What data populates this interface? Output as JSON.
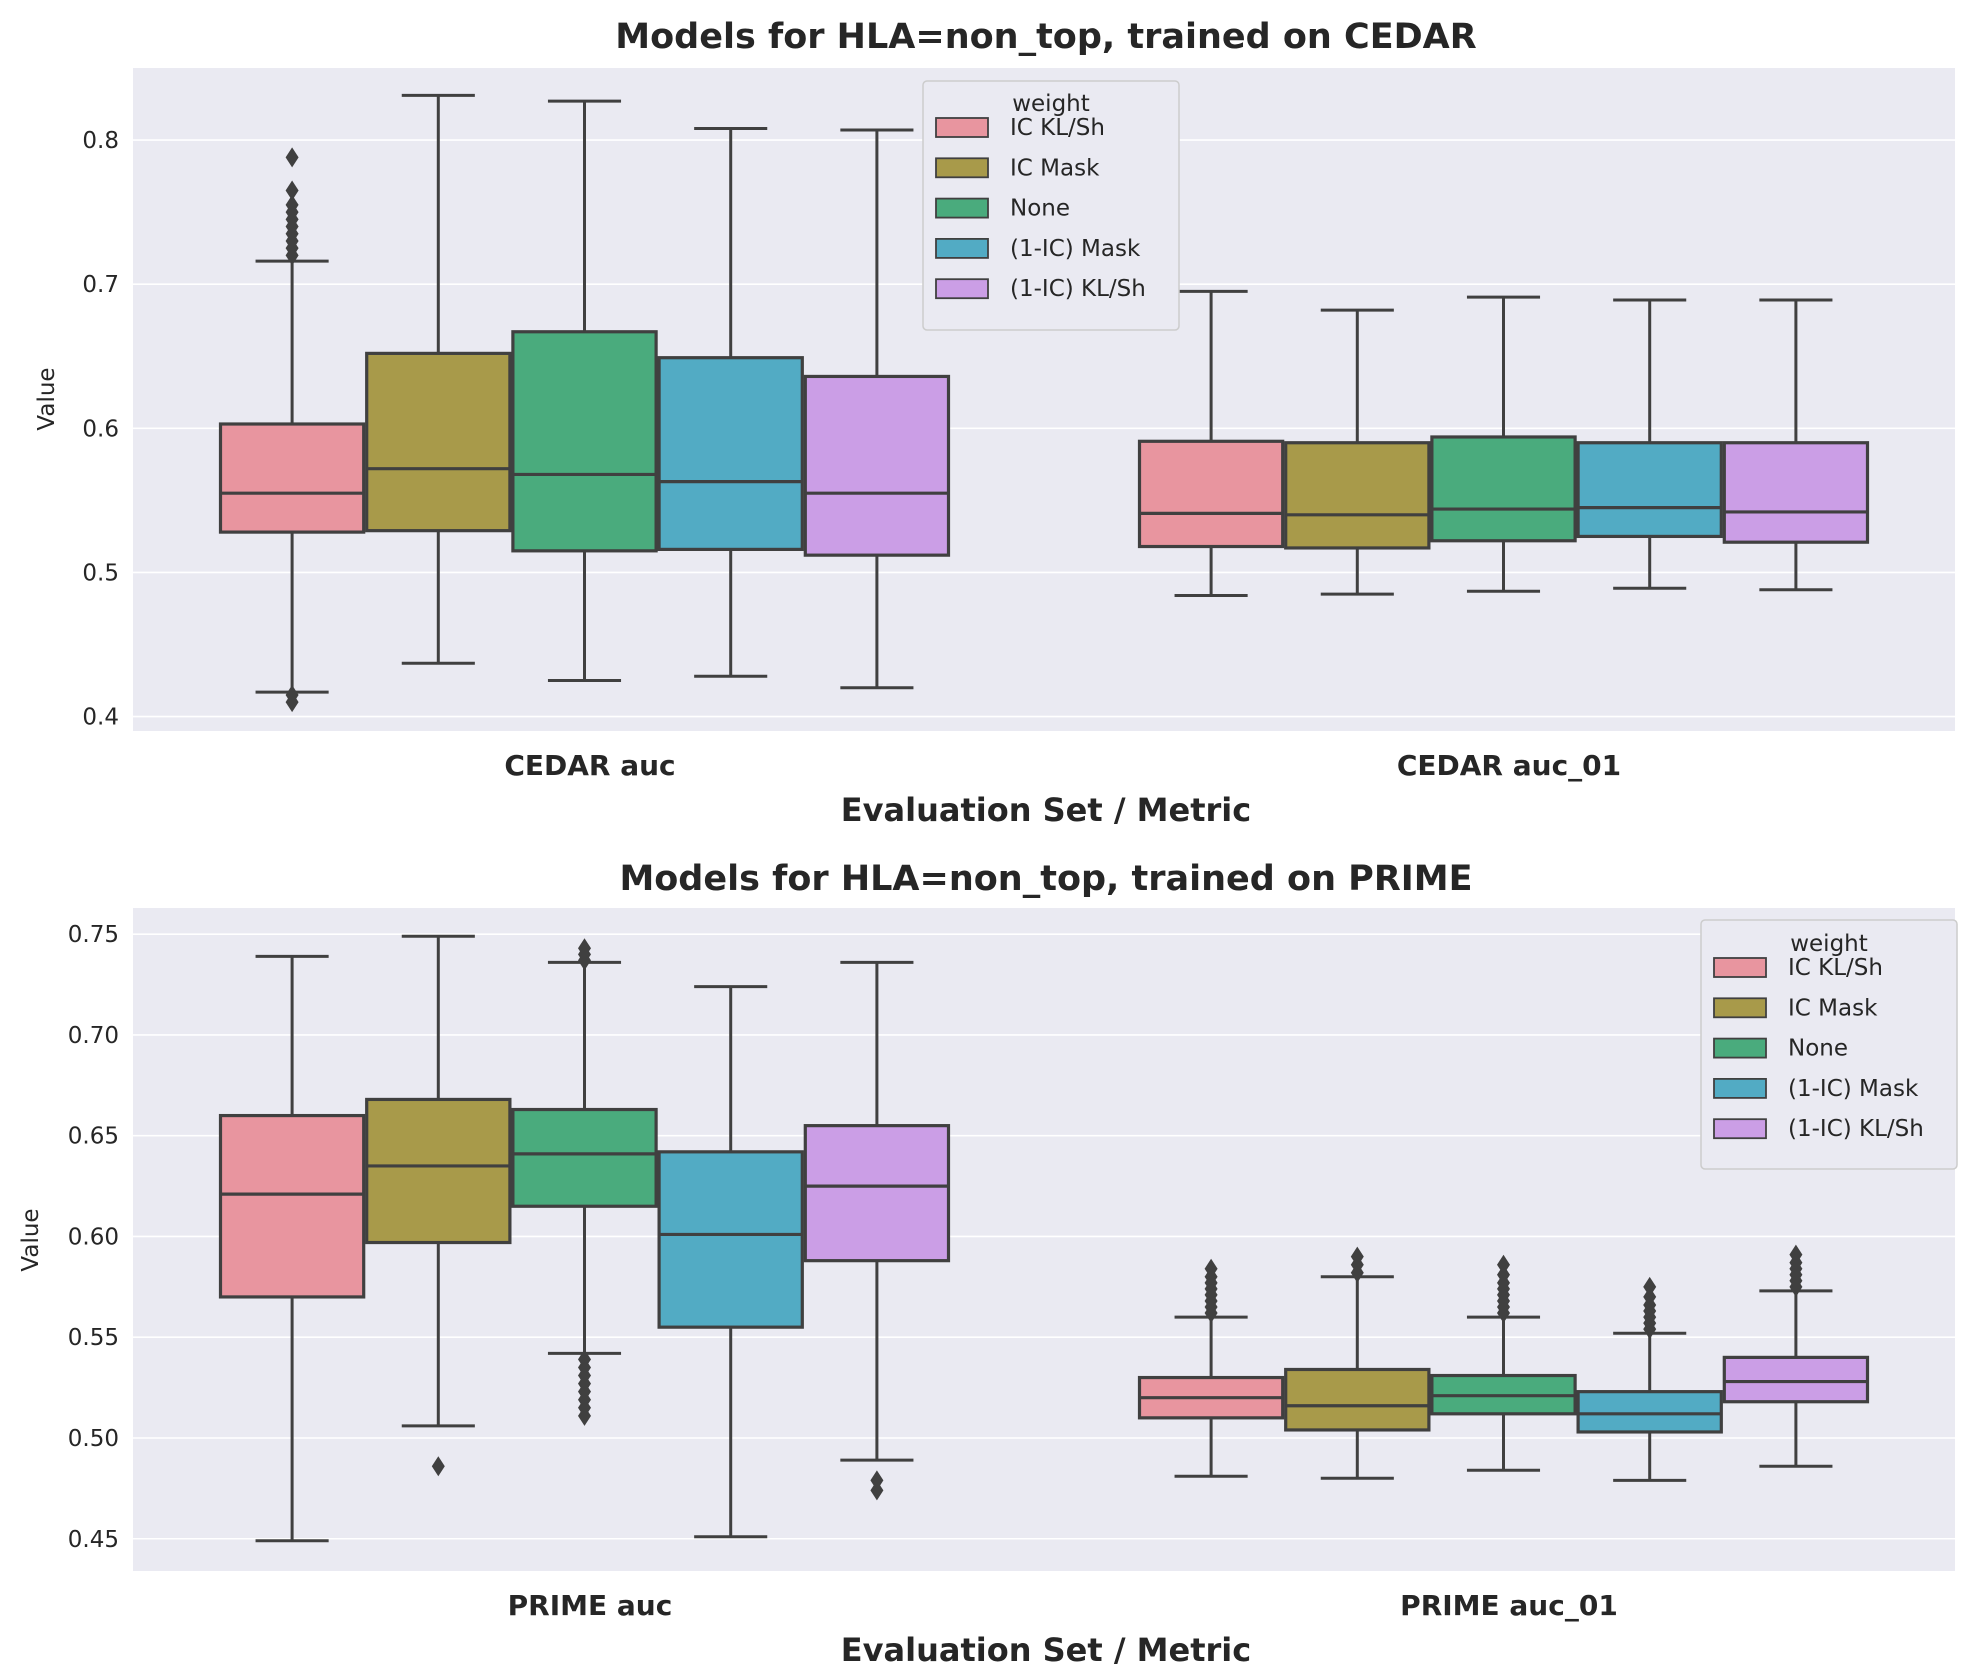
{
  "figure": {
    "background": "#ffffff",
    "axes_background": "#eaeaf2",
    "grid_color": "#ffffff",
    "line_color": "#404040"
  },
  "chart_data": [
    {
      "type": "box",
      "title": "Models for HLA=non_top, trained on CEDAR",
      "xlabel": "Evaluation Set / Metric",
      "ylabel": "Value",
      "ylim": [
        0.39,
        0.85
      ],
      "yticks": [
        0.4,
        0.5,
        0.6,
        0.7,
        0.8
      ],
      "ytick_labels": [
        "0.4",
        "0.5",
        "0.6",
        "0.7",
        "0.8"
      ],
      "grid": true,
      "legend_title": "weight",
      "legend_position": "top-center",
      "categories": [
        "CEDAR auc",
        "CEDAR auc_01"
      ],
      "series": [
        {
          "name": "IC KL/Sh",
          "color": "#e8959f",
          "boxes": [
            {
              "whislo": 0.417,
              "q1": 0.528,
              "med": 0.555,
              "q3": 0.603,
              "whishi": 0.716,
              "fliers": [
                0.41,
                0.415,
                0.72,
                0.725,
                0.73,
                0.735,
                0.74,
                0.745,
                0.75,
                0.755,
                0.765,
                0.788
              ]
            },
            {
              "whislo": 0.484,
              "q1": 0.518,
              "med": 0.541,
              "q3": 0.591,
              "whishi": 0.695,
              "fliers": []
            }
          ]
        },
        {
          "name": "IC Mask",
          "color": "#a89a4a",
          "boxes": [
            {
              "whislo": 0.437,
              "q1": 0.529,
              "med": 0.572,
              "q3": 0.652,
              "whishi": 0.831,
              "fliers": []
            },
            {
              "whislo": 0.485,
              "q1": 0.517,
              "med": 0.54,
              "q3": 0.59,
              "whishi": 0.682,
              "fliers": []
            }
          ]
        },
        {
          "name": "None",
          "color": "#4aab7d",
          "boxes": [
            {
              "whislo": 0.425,
              "q1": 0.515,
              "med": 0.568,
              "q3": 0.667,
              "whishi": 0.827,
              "fliers": []
            },
            {
              "whislo": 0.487,
              "q1": 0.522,
              "med": 0.544,
              "q3": 0.594,
              "whishi": 0.691,
              "fliers": []
            }
          ]
        },
        {
          "name": "(1-IC) Mask",
          "color": "#52abc4",
          "boxes": [
            {
              "whislo": 0.428,
              "q1": 0.516,
              "med": 0.563,
              "q3": 0.649,
              "whishi": 0.808,
              "fliers": []
            },
            {
              "whislo": 0.489,
              "q1": 0.525,
              "med": 0.545,
              "q3": 0.59,
              "whishi": 0.689,
              "fliers": []
            }
          ]
        },
        {
          "name": "(1-IC) KL/Sh",
          "color": "#cb9ee6",
          "boxes": [
            {
              "whislo": 0.42,
              "q1": 0.512,
              "med": 0.555,
              "q3": 0.636,
              "whishi": 0.807,
              "fliers": []
            },
            {
              "whislo": 0.488,
              "q1": 0.521,
              "med": 0.542,
              "q3": 0.59,
              "whishi": 0.689,
              "fliers": []
            }
          ]
        }
      ]
    },
    {
      "type": "box",
      "title": "Models for HLA=non_top, trained on PRIME",
      "xlabel": "Evaluation Set / Metric",
      "ylabel": "Value",
      "ylim": [
        0.434,
        0.763
      ],
      "yticks": [
        0.45,
        0.5,
        0.55,
        0.6,
        0.65,
        0.7,
        0.75
      ],
      "ytick_labels": [
        "0.45",
        "0.50",
        "0.55",
        "0.60",
        "0.65",
        "0.70",
        "0.75"
      ],
      "grid": true,
      "legend_title": "weight",
      "legend_position": "top-right",
      "categories": [
        "PRIME auc",
        "PRIME auc_01"
      ],
      "series": [
        {
          "name": "IC KL/Sh",
          "color": "#e8959f",
          "boxes": [
            {
              "whislo": 0.449,
              "q1": 0.57,
              "med": 0.621,
              "q3": 0.66,
              "whishi": 0.739,
              "fliers": []
            },
            {
              "whislo": 0.481,
              "q1": 0.51,
              "med": 0.52,
              "q3": 0.53,
              "whishi": 0.56,
              "fliers": [
                0.562,
                0.565,
                0.568,
                0.571,
                0.574,
                0.577,
                0.58,
                0.584
              ]
            }
          ]
        },
        {
          "name": "IC Mask",
          "color": "#a89a4a",
          "boxes": [
            {
              "whislo": 0.506,
              "q1": 0.597,
              "med": 0.635,
              "q3": 0.668,
              "whishi": 0.749,
              "fliers": [
                0.486
              ]
            },
            {
              "whislo": 0.48,
              "q1": 0.504,
              "med": 0.516,
              "q3": 0.534,
              "whishi": 0.58,
              "fliers": [
                0.582,
                0.586,
                0.59
              ]
            }
          ]
        },
        {
          "name": "None",
          "color": "#4aab7d",
          "boxes": [
            {
              "whislo": 0.542,
              "q1": 0.615,
              "med": 0.641,
              "q3": 0.663,
              "whishi": 0.736,
              "fliers": [
                0.511,
                0.515,
                0.519,
                0.523,
                0.527,
                0.531,
                0.535,
                0.539,
                0.737,
                0.74,
                0.743
              ]
            },
            {
              "whislo": 0.484,
              "q1": 0.512,
              "med": 0.521,
              "q3": 0.531,
              "whishi": 0.56,
              "fliers": [
                0.562,
                0.565,
                0.568,
                0.571,
                0.574,
                0.577,
                0.581,
                0.586
              ]
            }
          ]
        },
        {
          "name": "(1-IC) Mask",
          "color": "#52abc4",
          "boxes": [
            {
              "whislo": 0.451,
              "q1": 0.555,
              "med": 0.601,
              "q3": 0.642,
              "whishi": 0.724,
              "fliers": []
            },
            {
              "whislo": 0.479,
              "q1": 0.503,
              "med": 0.512,
              "q3": 0.523,
              "whishi": 0.552,
              "fliers": [
                0.554,
                0.557,
                0.56,
                0.563,
                0.566,
                0.57,
                0.575
              ]
            }
          ]
        },
        {
          "name": "(1-IC) KL/Sh",
          "color": "#cb9ee6",
          "boxes": [
            {
              "whislo": 0.489,
              "q1": 0.588,
              "med": 0.625,
              "q3": 0.655,
              "whishi": 0.736,
              "fliers": [
                0.474,
                0.479
              ]
            },
            {
              "whislo": 0.486,
              "q1": 0.518,
              "med": 0.528,
              "q3": 0.54,
              "whishi": 0.573,
              "fliers": [
                0.575,
                0.578,
                0.581,
                0.584,
                0.587,
                0.591
              ]
            }
          ]
        }
      ]
    }
  ]
}
